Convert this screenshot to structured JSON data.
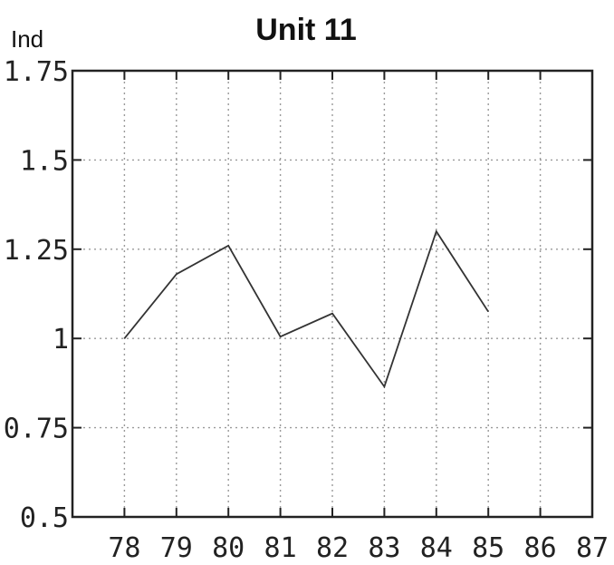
{
  "chart_data": {
    "type": "line",
    "title": "Unit 11",
    "ylabel": "Ind",
    "xlabel": "",
    "x": [
      78,
      79,
      80,
      81,
      82,
      83,
      84,
      85
    ],
    "series": [
      {
        "values": [
          1.0,
          1.18,
          1.26,
          1.005,
          1.07,
          0.865,
          1.3,
          1.075
        ]
      }
    ],
    "xlim": [
      77,
      87
    ],
    "ylim": [
      0.5,
      1.75
    ],
    "xticks": [
      78,
      79,
      80,
      81,
      82,
      83,
      84,
      85,
      86,
      87
    ],
    "xtick_labels": [
      "78",
      "79",
      "80",
      "81",
      "82",
      "83",
      "84",
      "85",
      "86",
      "87"
    ],
    "yticks": [
      0.5,
      0.75,
      1,
      1.25,
      1.5,
      1.75
    ],
    "ytick_labels": [
      "0.5",
      "0.75",
      "1",
      "1.25",
      "1.5",
      "1.75"
    ],
    "grid": true,
    "line_color": "#333333"
  }
}
